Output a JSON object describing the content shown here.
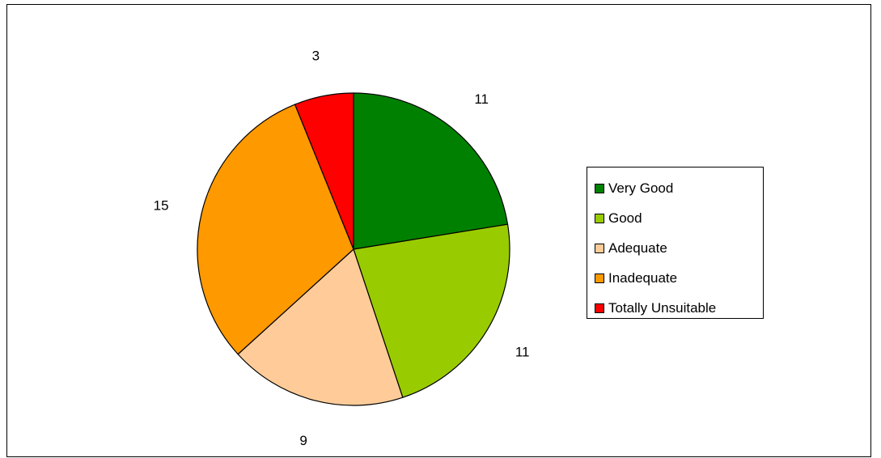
{
  "chart_data": {
    "type": "pie",
    "categories": [
      "Very Good",
      "Good",
      "Adequate",
      "Inadequate",
      "Totally Unsuitable"
    ],
    "values": [
      11,
      11,
      9,
      15,
      3
    ],
    "colors": [
      "#008000",
      "#99CC00",
      "#FFCC99",
      "#FF9900",
      "#FF0000"
    ],
    "data_labels": [
      "11",
      "11",
      "9",
      "15",
      "3"
    ],
    "legend_placement": "right",
    "start_angle": "12 o'clock, clockwise"
  }
}
